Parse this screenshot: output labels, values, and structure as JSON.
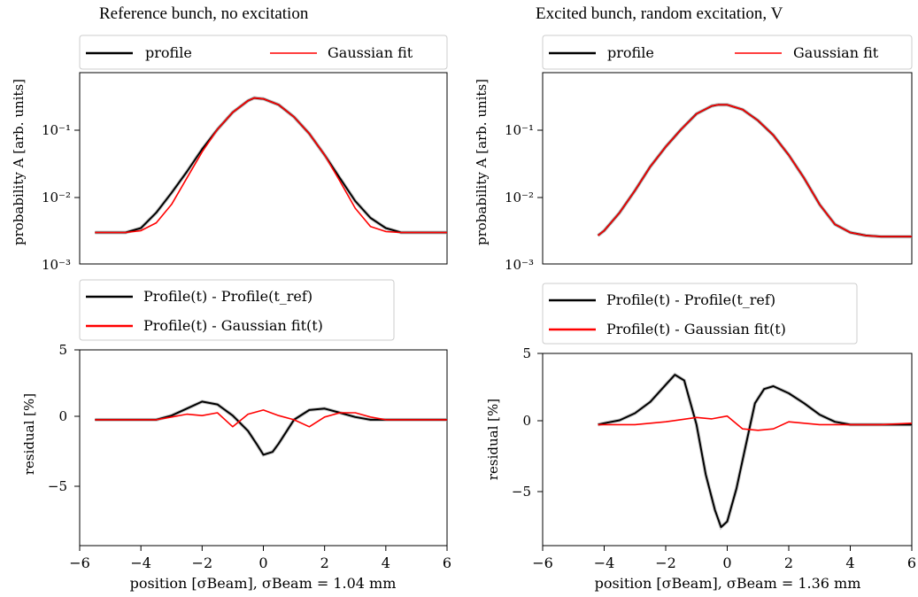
{
  "panels": [
    {
      "title": "Reference bunch, no excitation",
      "xlabel": "position [σBeam], σBeam = 1.04 mm",
      "top": {
        "ylabel": "probability A [arb. units]",
        "legend": [
          "profile",
          "Gaussian fit"
        ],
        "yticks": [
          "10⁻¹",
          "10⁻²",
          "10⁻³"
        ]
      },
      "bottom": {
        "ylabel": "residual [%]",
        "legend": [
          "Profile(t) - Profile(t_ref)",
          "Profile(t) - Gaussian fit(t)"
        ],
        "yticks": [
          "5",
          "0",
          "−5"
        ]
      },
      "xticks": [
        "−6",
        "−4",
        "−2",
        "0",
        "2",
        "4",
        "6"
      ]
    },
    {
      "title": "Excited bunch, random excitation, V",
      "xlabel": "position [σBeam], σBeam = 1.36 mm",
      "top": {
        "ylabel": "probability A [arb. units]",
        "legend": [
          "profile",
          "Gaussian fit"
        ],
        "yticks": [
          "10⁻¹",
          "10⁻²",
          "10⁻³"
        ]
      },
      "bottom": {
        "ylabel": "residual [%]",
        "legend": [
          "Profile(t) - Profile(t_ref)",
          "Profile(t) - Gaussian fit(t)"
        ],
        "yticks": [
          "5",
          "0",
          "−5"
        ]
      },
      "xticks": [
        "−6",
        "−4",
        "−2",
        "0",
        "2",
        "4",
        "6"
      ]
    }
  ],
  "colors": {
    "profile": "#000000",
    "fit": "#ff0000",
    "band": "#a0a0a0"
  },
  "chart_data": [
    {
      "type": "line",
      "panel": "left-top",
      "yscale": "log",
      "xlim": [
        -6,
        6
      ],
      "ylim": [
        0.001,
        0.8
      ],
      "series": [
        {
          "name": "profile",
          "x": [
            -5.5,
            -5,
            -4.5,
            -4,
            -3.5,
            -3,
            -2.5,
            -2,
            -1.5,
            -1,
            -0.5,
            -0.3,
            0,
            0.5,
            1,
            1.5,
            2,
            2.5,
            3,
            3.5,
            4,
            4.5,
            5,
            5.5,
            6
          ],
          "y": [
            0.003,
            0.003,
            0.003,
            0.0035,
            0.006,
            0.012,
            0.025,
            0.055,
            0.11,
            0.2,
            0.3,
            0.33,
            0.32,
            0.26,
            0.17,
            0.095,
            0.045,
            0.02,
            0.009,
            0.005,
            0.0035,
            0.003,
            0.003,
            0.003,
            0.003
          ]
        },
        {
          "name": "Gaussian fit",
          "x": [
            -5.5,
            -5,
            -4.5,
            -4,
            -3.5,
            -3,
            -2.5,
            -2,
            -1.5,
            -1,
            -0.5,
            -0.3,
            0,
            0.5,
            1,
            1.5,
            2,
            2.5,
            3,
            3.5,
            4,
            4.5,
            5,
            5.5,
            6
          ],
          "y": [
            0.003,
            0.003,
            0.003,
            0.0032,
            0.0042,
            0.008,
            0.02,
            0.05,
            0.11,
            0.2,
            0.3,
            0.33,
            0.32,
            0.26,
            0.17,
            0.095,
            0.045,
            0.018,
            0.007,
            0.0037,
            0.0031,
            0.003,
            0.003,
            0.003,
            0.003
          ]
        }
      ]
    },
    {
      "type": "line",
      "panel": "left-bottom",
      "xlim": [
        -6,
        6
      ],
      "ylim": [
        -9,
        5
      ],
      "series": [
        {
          "name": "Profile(t) - Profile(t_ref)",
          "x": [
            -5.5,
            -4.5,
            -3.5,
            -3,
            -2.5,
            -2,
            -1.5,
            -1,
            -0.5,
            -0.2,
            0,
            0.3,
            0.5,
            1,
            1.5,
            2,
            2.5,
            3,
            3.5,
            4,
            5,
            6
          ],
          "y": [
            0,
            0,
            0,
            0.3,
            0.8,
            1.3,
            1.1,
            0.3,
            -0.8,
            -1.8,
            -2.5,
            -2.3,
            -1.7,
            0,
            0.7,
            0.8,
            0.5,
            0.2,
            0,
            0,
            0,
            0
          ]
        },
        {
          "name": "Profile(t) - Gaussian fit(t)",
          "x": [
            -5.5,
            -4.5,
            -3.5,
            -3,
            -2.5,
            -2,
            -1.5,
            -1,
            -0.5,
            0,
            0.5,
            1,
            1.5,
            2,
            2.5,
            3,
            3.5,
            4,
            5,
            6
          ],
          "y": [
            0,
            0,
            0,
            0.2,
            0.4,
            0.3,
            0.5,
            -0.5,
            0.4,
            0.7,
            0.3,
            0,
            -0.5,
            0.2,
            0.5,
            0.5,
            0.2,
            0,
            0,
            0
          ]
        }
      ]
    },
    {
      "type": "line",
      "panel": "right-top",
      "yscale": "log",
      "xlim": [
        -6,
        6
      ],
      "ylim": [
        0.001,
        0.8
      ],
      "series": [
        {
          "name": "profile",
          "x": [
            -4.2,
            -4,
            -3.5,
            -3,
            -2.5,
            -2,
            -1.5,
            -1,
            -0.5,
            -0.3,
            0,
            0.5,
            1,
            1.5,
            2,
            2.5,
            3,
            3.5,
            4,
            4.5,
            5,
            5.5,
            6
          ],
          "y": [
            0.0027,
            0.0032,
            0.006,
            0.013,
            0.03,
            0.06,
            0.11,
            0.19,
            0.25,
            0.26,
            0.26,
            0.22,
            0.15,
            0.09,
            0.045,
            0.02,
            0.008,
            0.004,
            0.003,
            0.0027,
            0.0026,
            0.0026,
            0.0026
          ]
        },
        {
          "name": "Gaussian fit",
          "x": [
            -4.2,
            -4,
            -3.5,
            -3,
            -2.5,
            -2,
            -1.5,
            -1,
            -0.5,
            -0.3,
            0,
            0.5,
            1,
            1.5,
            2,
            2.5,
            3,
            3.5,
            4,
            4.5,
            5,
            5.5,
            6
          ],
          "y": [
            0.0027,
            0.0032,
            0.006,
            0.013,
            0.03,
            0.06,
            0.11,
            0.19,
            0.25,
            0.26,
            0.26,
            0.22,
            0.15,
            0.09,
            0.045,
            0.02,
            0.008,
            0.004,
            0.003,
            0.0027,
            0.0026,
            0.0026,
            0.0026
          ]
        }
      ]
    },
    {
      "type": "line",
      "panel": "right-bottom",
      "xlim": [
        -6,
        6
      ],
      "ylim": [
        -8.5,
        5
      ],
      "series": [
        {
          "name": "Profile(t) - Profile(t_ref)",
          "x": [
            -4.2,
            -4,
            -3.5,
            -3,
            -2.5,
            -2,
            -1.7,
            -1.4,
            -1,
            -0.7,
            -0.4,
            -0.2,
            0,
            0.3,
            0.6,
            0.9,
            1.2,
            1.5,
            2,
            2.5,
            3,
            3.5,
            4,
            5,
            6
          ],
          "y": [
            0,
            0.1,
            0.3,
            0.8,
            1.6,
            2.8,
            3.5,
            3.1,
            0,
            -3.5,
            -6,
            -7.2,
            -6.8,
            -4.5,
            -1.5,
            1.5,
            2.5,
            2.7,
            2.2,
            1.5,
            0.7,
            0.2,
            0,
            0,
            0
          ]
        },
        {
          "name": "Profile(t) - Gaussian fit(t)",
          "x": [
            -4.2,
            -3,
            -2,
            -1,
            -0.5,
            0,
            0.5,
            1,
            1.5,
            2,
            2.5,
            3,
            4,
            5,
            6
          ],
          "y": [
            0,
            0,
            0.2,
            0.5,
            0.4,
            0.6,
            -0.3,
            -0.4,
            -0.3,
            0.2,
            0.1,
            0,
            0,
            0,
            0.1
          ]
        }
      ]
    }
  ]
}
